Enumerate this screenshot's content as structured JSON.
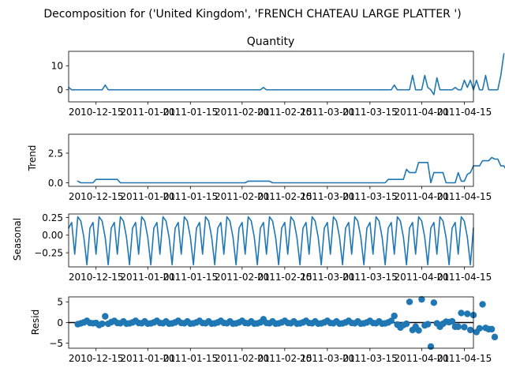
{
  "figure": {
    "title": "Decomposition for ('United Kingdom', 'FRENCH CHATEAU LARGE PLATTER ')",
    "series_color": "#1f77b4"
  },
  "chart_data": [
    {
      "type": "line",
      "panel": "observed",
      "title": "Quantity",
      "ylabel": "",
      "x_start": "2010-12-06",
      "x_end": "2011-04-18",
      "x_interval": "1 day",
      "xtick_labels": [
        "2010-12-15",
        "2011-01-01",
        "2011-01-15",
        "2011-02-01",
        "2011-02-15",
        "2011-03-01",
        "2011-03-15",
        "2011-04-01",
        "2011-04-15"
      ],
      "ylim": [
        -5,
        16
      ],
      "ytick_values": [
        0,
        10
      ],
      "values": [
        1,
        0,
        0,
        0,
        0,
        0,
        0,
        0,
        0,
        0,
        0,
        0,
        2,
        0,
        0,
        0,
        0,
        0,
        0,
        0,
        0,
        0,
        0,
        0,
        0,
        0,
        0,
        0,
        0,
        0,
        0,
        0,
        0,
        0,
        0,
        0,
        0,
        0,
        0,
        0,
        0,
        0,
        0,
        0,
        0,
        0,
        0,
        0,
        0,
        0,
        0,
        0,
        0,
        0,
        0,
        0,
        0,
        0,
        0,
        0,
        0,
        0,
        0,
        0,
        1,
        0,
        0,
        0,
        0,
        0,
        0,
        0,
        0,
        0,
        0,
        0,
        0,
        0,
        0,
        0,
        0,
        0,
        0,
        0,
        0,
        0,
        0,
        0,
        0,
        0,
        0,
        0,
        0,
        0,
        0,
        0,
        0,
        0,
        0,
        0,
        0,
        0,
        0,
        0,
        0,
        0,
        0,
        2,
        0,
        0,
        0,
        0,
        0,
        6,
        0,
        0,
        0,
        6,
        1,
        0,
        -2,
        5,
        0,
        0,
        0,
        0,
        0,
        1,
        0,
        0,
        4,
        1,
        4,
        0,
        4,
        0,
        0,
        6,
        0,
        0,
        0,
        0,
        6,
        15
      ]
    },
    {
      "type": "line",
      "panel": "trend",
      "title": "",
      "ylabel": "Trend",
      "x_start": "2010-12-06",
      "x_end": "2011-04-18",
      "xtick_labels": [
        "2010-12-15",
        "2011-01-01",
        "2011-01-15",
        "2011-02-01",
        "2011-02-15",
        "2011-03-01",
        "2011-03-15",
        "2011-04-01",
        "2011-04-15"
      ],
      "ylim": [
        -0.3,
        4.1
      ],
      "ytick_values": [
        0.0,
        2.5
      ],
      "ytick_labels": [
        "0.0",
        "2.5"
      ],
      "values": [
        null,
        null,
        null,
        0.14,
        0,
        0,
        0,
        0,
        0,
        0.29,
        0.29,
        0.29,
        0.29,
        0.29,
        0.29,
        0.29,
        0.29,
        0,
        0,
        0,
        0,
        0,
        0,
        0,
        0,
        0,
        0,
        0,
        0,
        0,
        0,
        0,
        0,
        0,
        0,
        0,
        0,
        0,
        0,
        0,
        0,
        0,
        0,
        0,
        0,
        0,
        0,
        0,
        0,
        0,
        0,
        0,
        0,
        0,
        0,
        0,
        0,
        0,
        0,
        0.14,
        0.14,
        0.14,
        0.14,
        0.14,
        0.14,
        0.14,
        0.14,
        0,
        0,
        0,
        0,
        0,
        0,
        0,
        0,
        0,
        0,
        0,
        0,
        0,
        0,
        0,
        0,
        0,
        0,
        0,
        0,
        0,
        0,
        0,
        0,
        0,
        0,
        0,
        0,
        0,
        0,
        0,
        0,
        0,
        0,
        0,
        0,
        0,
        0,
        0.29,
        0.29,
        0.29,
        0.29,
        0.29,
        0.29,
        1.14,
        0.86,
        0.86,
        0.86,
        1.71,
        1.71,
        1.71,
        1.71,
        0,
        0.86,
        0.86,
        0.86,
        0.86,
        0,
        0,
        0,
        0,
        0.86,
        0.14,
        0.14,
        0.71,
        0.86,
        1.43,
        1.43,
        1.43,
        1.86,
        1.86,
        1.86,
        2.14,
        2.0,
        2.0,
        1.43,
        1.43,
        1.0,
        1.57,
        4.0
      ]
    },
    {
      "type": "line",
      "panel": "seasonal",
      "title": "",
      "ylabel": "Seasonal",
      "x_start": "2010-12-06",
      "x_end": "2011-04-18",
      "xtick_labels": [
        "2010-12-15",
        "2011-01-01",
        "2011-01-15",
        "2011-02-01",
        "2011-02-15",
        "2011-03-01",
        "2011-03-15",
        "2011-04-01",
        "2011-04-15"
      ],
      "ylim": [
        -0.45,
        0.3
      ],
      "ytick_values": [
        0.25,
        0.0,
        -0.25
      ],
      "ytick_labels": [
        "0.25",
        "0.00",
        "−0.25"
      ],
      "period_pattern": [
        0.1,
        0.18,
        -0.27,
        0.26,
        0.2,
        -0.03,
        -0.42
      ]
    },
    {
      "type": "scatter",
      "panel": "resid",
      "title": "",
      "ylabel": "Resid",
      "x_start": "2010-12-06",
      "x_end": "2011-04-18",
      "xtick_labels": [
        "2010-12-15",
        "2011-01-01",
        "2011-01-15",
        "2011-02-01",
        "2011-02-15",
        "2011-03-01",
        "2011-03-15",
        "2011-04-01",
        "2011-04-15"
      ],
      "ylim": [
        -6.2,
        6.2
      ],
      "ytick_values": [
        5,
        0,
        -5
      ],
      "ytick_labels": [
        "5",
        "0",
        "−5"
      ],
      "zero_line": true,
      "values": [
        null,
        null,
        null,
        -0.4,
        -0.2,
        0.03,
        0.42,
        -0.1,
        -0.18,
        -0.1,
        -0.6,
        -0.3,
        1.5,
        -0.3,
        0.1,
        0.4,
        -0.1,
        -0.18,
        0.27,
        -0.26,
        -0.2,
        0.03,
        0.42,
        -0.1,
        -0.18,
        0.27,
        -0.26,
        -0.2,
        0.03,
        0.42,
        -0.1,
        -0.18,
        0.27,
        -0.26,
        -0.2,
        0.03,
        0.42,
        -0.1,
        -0.18,
        0.27,
        -0.26,
        -0.2,
        0.03,
        0.42,
        -0.1,
        -0.18,
        0.27,
        -0.26,
        -0.2,
        0.03,
        0.42,
        -0.1,
        -0.18,
        0.27,
        -0.26,
        -0.2,
        0.03,
        0.42,
        -0.1,
        -0.18,
        0.27,
        -0.26,
        -0.2,
        0.03,
        0.8,
        -0.1,
        -0.18,
        0.27,
        -0.26,
        -0.2,
        0.03,
        0.42,
        -0.1,
        -0.18,
        0.27,
        -0.26,
        -0.2,
        0.03,
        0.42,
        -0.1,
        -0.18,
        0.27,
        -0.26,
        -0.2,
        0.03,
        0.42,
        -0.1,
        -0.18,
        0.27,
        -0.26,
        -0.2,
        0.03,
        0.42,
        -0.1,
        -0.18,
        0.27,
        -0.26,
        -0.2,
        0.03,
        0.42,
        -0.1,
        -0.18,
        0.27,
        -0.26,
        -0.2,
        0.03,
        0.42,
        1.6,
        -0.5,
        -1.2,
        -0.6,
        -0.3,
        5.0,
        -1.8,
        -1.0,
        -1.9,
        5.6,
        -0.7,
        -0.4,
        -5.8,
        4.8,
        -0.2,
        -1.0,
        -0.3,
        0.2,
        0.1,
        0.3,
        -1.0,
        -1.0,
        2.3,
        -1.1,
        2.1,
        -1.8,
        1.8,
        -2.3,
        -1.4,
        4.4,
        -1.3,
        -1.6,
        -1.6,
        -3.5,
        null,
        null,
        null
      ]
    }
  ]
}
